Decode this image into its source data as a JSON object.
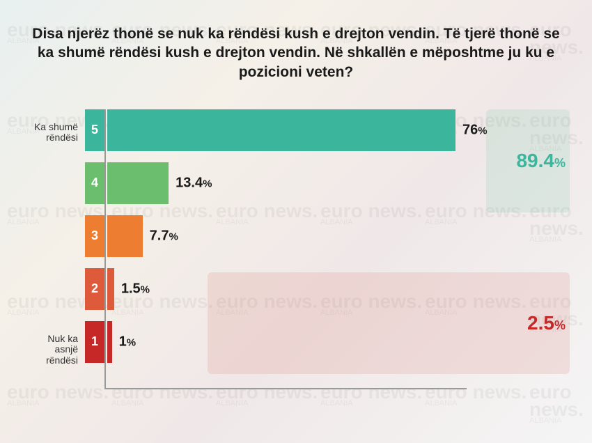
{
  "title": "Disa njerëz thonë se nuk ka rëndësi kush e drejton vendin. Të tjerë thonë se ka shumë rëndësi kush e drejton vendin. Në shkallën e mëposhtme ju ku e pozicioni veten?",
  "watermark_text": "euro news.",
  "watermark_sub": "ALBANIA",
  "chart": {
    "type": "bar",
    "max_value": 76,
    "bars": [
      {
        "level": "5",
        "end_label": "Ka shumë rëndësi",
        "value": 76,
        "value_label": "76",
        "bar_color": "#3bb69d",
        "badge_color": "#3bb69d"
      },
      {
        "level": "4",
        "end_label": "",
        "value": 13.4,
        "value_label": "13.4",
        "bar_color": "#6cbe6f",
        "badge_color": "#6cbe6f"
      },
      {
        "level": "3",
        "end_label": "",
        "value": 7.7,
        "value_label": "7.7",
        "bar_color": "#ed7d31",
        "badge_color": "#ed7d31"
      },
      {
        "level": "2",
        "end_label": "",
        "value": 1.5,
        "value_label": "1.5",
        "bar_color": "#dd5a3a",
        "badge_color": "#dd5a3a"
      },
      {
        "level": "1",
        "end_label": "Nuk ka asnjë rëndësi",
        "value": 1,
        "value_label": "1",
        "bar_color": "#c62828",
        "badge_color": "#c62828"
      }
    ],
    "group_top": {
      "value_label": "89.4",
      "color": "#3bb69d"
    },
    "group_bottom": {
      "value_label": "2.5",
      "color": "#c62828"
    },
    "bar_track_width": 500
  }
}
